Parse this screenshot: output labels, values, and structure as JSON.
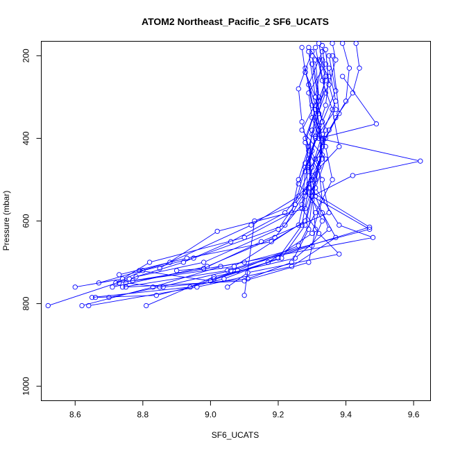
{
  "chart_data": {
    "type": "scatter",
    "title": "ATOM2 Northeast_Pacific_2 SF6_UCATS",
    "xlabel": "SF6_UCATS",
    "ylabel": "Pressure (mbar)",
    "xlim": [
      8.5,
      9.65
    ],
    "ylim": [
      1035,
      165
    ],
    "y_reversed": true,
    "x_ticks": [
      8.6,
      8.8,
      9.0,
      9.2,
      9.4,
      9.6
    ],
    "x_tick_labels": [
      "8.6",
      "8.8",
      "9.0",
      "9.2",
      "9.4",
      "9.6"
    ],
    "y_ticks": [
      200,
      400,
      600,
      800,
      1000
    ],
    "y_tick_labels": [
      "200",
      "400",
      "600",
      "800",
      "1000"
    ],
    "grid": false,
    "legend": "none",
    "marker": "open-circle",
    "color": "#0000ff",
    "series": [
      {
        "x": [
          9.36,
          9.37,
          9.35,
          9.31,
          9.28,
          9.29,
          9.3,
          9.25,
          9.2,
          8.98,
          8.78
        ],
        "y": [
          170,
          210,
          270,
          330,
          410,
          450,
          500,
          560,
          620,
          700,
          735
        ]
      },
      {
        "x": [
          9.33,
          9.34,
          9.32,
          9.29,
          9.26,
          9.24,
          9.1,
          8.82,
          8.74,
          8.6
        ],
        "y": [
          175,
          250,
          340,
          420,
          500,
          580,
          640,
          700,
          740,
          760
        ]
      },
      {
        "x": [
          9.39,
          9.41,
          9.4,
          9.35,
          9.31,
          9.28,
          9.22,
          8.95,
          8.8,
          8.72
        ],
        "y": [
          170,
          230,
          310,
          380,
          450,
          530,
          610,
          690,
          720,
          750
        ]
      },
      {
        "x": [
          9.31,
          9.33,
          9.36,
          9.38,
          9.3,
          9.27,
          9.19,
          8.99,
          8.71
        ],
        "y": [
          180,
          260,
          330,
          420,
          490,
          560,
          640,
          710,
          760
        ]
      },
      {
        "x": [
          9.27,
          9.28,
          9.31,
          9.32,
          9.33,
          9.29,
          9.22,
          9.06,
          8.92,
          8.76,
          8.52
        ],
        "y": [
          180,
          240,
          300,
          370,
          440,
          510,
          580,
          650,
          700,
          740,
          805
        ]
      },
      {
        "x": [
          9.43,
          9.44,
          9.42,
          9.37,
          9.33,
          9.29,
          9.26,
          9.12,
          8.88,
          8.67
        ],
        "y": [
          170,
          230,
          290,
          350,
          420,
          480,
          540,
          610,
          700,
          750
        ]
      },
      {
        "x": [
          9.34,
          9.35,
          9.37,
          9.31,
          9.29,
          9.3,
          9.28,
          9.18,
          8.93,
          8.73
        ],
        "y": [
          185,
          270,
          330,
          400,
          470,
          530,
          600,
          650,
          690,
          730
        ]
      },
      {
        "x": [
          9.39,
          9.49,
          9.32,
          9.62,
          9.42,
          9.3,
          9.47,
          9.1,
          8.73
        ],
        "y": [
          250,
          365,
          400,
          455,
          490,
          540,
          620,
          700,
          750
        ]
      },
      {
        "x": [
          9.3,
          9.32,
          9.27,
          9.34,
          9.31,
          9.38,
          9.48,
          9.03,
          8.83,
          8.62
        ],
        "y": [
          200,
          300,
          380,
          450,
          520,
          610,
          640,
          710,
          760,
          805
        ]
      },
      {
        "x": [
          9.35,
          9.37,
          9.33,
          9.3,
          9.26,
          9.33,
          9.37,
          9.24,
          8.96,
          8.64
        ],
        "y": [
          200,
          285,
          360,
          430,
          510,
          580,
          640,
          710,
          760,
          805
        ]
      },
      {
        "x": [
          9.32,
          9.34,
          9.3,
          9.29,
          9.31,
          9.35,
          9.25,
          9.01,
          8.81
        ],
        "y": [
          210,
          290,
          380,
          460,
          540,
          620,
          690,
          735,
          805
        ]
      },
      {
        "x": [
          9.29,
          9.31,
          9.33,
          9.28,
          9.27,
          9.32,
          9.38,
          9.11,
          9.05
        ],
        "y": [
          190,
          300,
          360,
          480,
          570,
          630,
          680,
          725,
          760
        ]
      },
      {
        "x": [
          9.36,
          9.38,
          9.34,
          9.32,
          9.3,
          9.31,
          9.29,
          9.1,
          8.75
        ],
        "y": [
          200,
          340,
          400,
          470,
          540,
          620,
          700,
          745,
          760
        ]
      },
      {
        "x": [
          9.28,
          9.3,
          9.32,
          9.33,
          9.29,
          9.27,
          9.2,
          9.04,
          8.84,
          8.66
        ],
        "y": [
          230,
          320,
          380,
          450,
          520,
          610,
          690,
          740,
          780,
          785
        ]
      },
      {
        "x": [
          9.33,
          9.29,
          9.31,
          9.34,
          9.36,
          9.31,
          9.26,
          9.08,
          8.94,
          8.65
        ],
        "y": [
          190,
          270,
          350,
          420,
          500,
          580,
          660,
          720,
          760,
          785
        ]
      },
      {
        "x": [
          9.31,
          9.32,
          9.3,
          9.28,
          9.29,
          9.33,
          9.3,
          9.06,
          8.85,
          8.7
        ],
        "y": [
          210,
          300,
          390,
          460,
          530,
          600,
          660,
          720,
          760,
          785
        ]
      },
      {
        "x": [
          9.29,
          9.35,
          9.34,
          9.31,
          9.28,
          9.25,
          9.13,
          9.1
        ],
        "y": [
          180,
          250,
          320,
          400,
          470,
          560,
          600,
          780
        ]
      },
      {
        "x": [
          9.32,
          9.34,
          9.31,
          9.28,
          9.32,
          9.33,
          9.3,
          9.17,
          9.01
        ],
        "y": [
          170,
          260,
          330,
          400,
          470,
          550,
          630,
          700,
          740
        ]
      },
      {
        "x": [
          9.3,
          9.26,
          9.27,
          9.29,
          9.33,
          9.35,
          9.15,
          8.98,
          8.9
        ],
        "y": [
          190,
          280,
          360,
          430,
          500,
          580,
          650,
          715,
          720
        ]
      },
      {
        "x": [
          9.34,
          9.29,
          9.3,
          9.33,
          9.31,
          9.28,
          9.02,
          8.85
        ],
        "y": [
          220,
          290,
          350,
          420,
          500,
          570,
          625,
          715
        ]
      },
      {
        "x": [
          9.35,
          9.37,
          9.33,
          9.3,
          9.28,
          9.26,
          9.07,
          8.77
        ],
        "y": [
          230,
          310,
          390,
          470,
          540,
          610,
          710,
          745
        ]
      },
      {
        "x": [
          9.33,
          9.31,
          9.34,
          9.32,
          9.3,
          9.47,
          9.05,
          8.74
        ],
        "y": [
          210,
          300,
          380,
          450,
          530,
          615,
          720,
          760
        ]
      },
      {
        "x": [
          9.3,
          9.32,
          9.31,
          9.29,
          9.3,
          9.28,
          9.21,
          9.0,
          8.79
        ],
        "y": [
          220,
          310,
          395,
          465,
          540,
          610,
          690,
          745,
          720
        ]
      },
      {
        "x": [
          9.28,
          9.31,
          9.33,
          9.32,
          9.3,
          9.29,
          9.24,
          9.11,
          8.86,
          8.75
        ],
        "y": [
          240,
          320,
          400,
          470,
          550,
          620,
          700,
          740,
          760,
          750
        ]
      }
    ]
  }
}
